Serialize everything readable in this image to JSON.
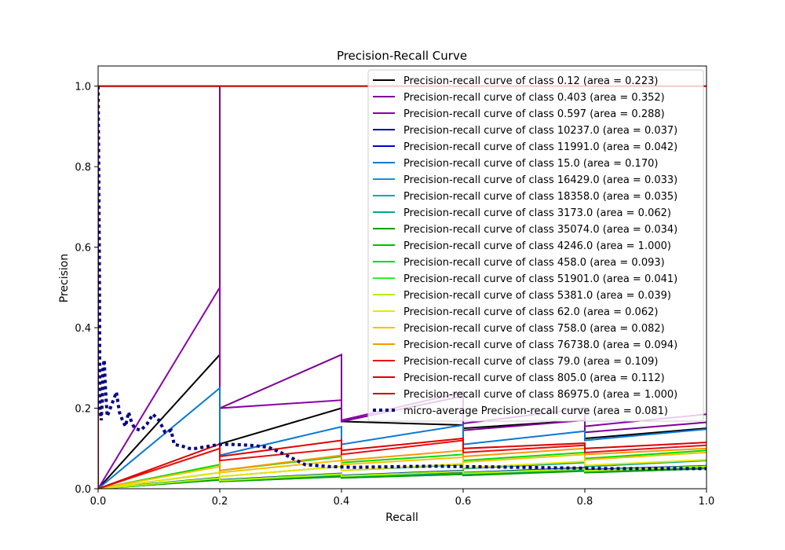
{
  "chart_data": {
    "type": "line",
    "title": "Precision-Recall Curve",
    "xlabel": "Recall",
    "ylabel": "Precision",
    "xlim": [
      0.0,
      1.0
    ],
    "ylim": [
      0.0,
      1.05
    ],
    "xticks": [
      "0.0",
      "0.2",
      "0.4",
      "0.6",
      "0.8",
      "1.0"
    ],
    "yticks": [
      "0.0",
      "0.2",
      "0.4",
      "0.6",
      "0.8",
      "1.0"
    ],
    "grid": false,
    "legend_position": "top-right",
    "series": [
      {
        "name": "Precision-recall curve of class 0.12 (area = 0.223)",
        "color": "#000000",
        "points": [
          [
            0,
            0
          ],
          [
            0.2,
            0.333
          ],
          [
            0.2,
            0.111
          ],
          [
            0.4,
            0.2
          ],
          [
            0.4,
            0.167
          ],
          [
            0.6,
            0.158
          ],
          [
            0.6,
            0.15
          ],
          [
            0.8,
            0.17
          ],
          [
            0.8,
            0.125
          ],
          [
            1.0,
            0.15
          ]
        ]
      },
      {
        "name": "Precision-recall curve of class 0.403 (area = 0.352)",
        "color": "#7a0094",
        "points": [
          [
            0,
            0
          ],
          [
            0,
            1.0
          ],
          [
            0.2,
            1.0
          ],
          [
            0.2,
            0.2
          ],
          [
            0.4,
            0.333
          ],
          [
            0.4,
            0.167
          ],
          [
            0.6,
            0.23
          ],
          [
            0.6,
            0.145
          ],
          [
            0.8,
            0.17
          ],
          [
            0.8,
            0.14
          ],
          [
            1.0,
            0.165
          ]
        ]
      },
      {
        "name": "Precision-recall curve of class 0.597 (area = 0.288)",
        "color": "#8b00a8",
        "points": [
          [
            0,
            0
          ],
          [
            0.2,
            0.5
          ],
          [
            0.2,
            0.2
          ],
          [
            0.4,
            0.22
          ],
          [
            0.4,
            0.17
          ],
          [
            0.6,
            0.24
          ],
          [
            0.6,
            0.162
          ],
          [
            0.8,
            0.2
          ],
          [
            0.8,
            0.155
          ],
          [
            1.0,
            0.185
          ]
        ]
      },
      {
        "name": "Precision-recall curve of class 10237.0 (area = 0.037)",
        "color": "#0000a0",
        "points": [
          [
            0,
            0
          ],
          [
            0.2,
            0.025
          ],
          [
            0.2,
            0.02
          ],
          [
            0.4,
            0.035
          ],
          [
            0.4,
            0.03
          ],
          [
            0.6,
            0.042
          ],
          [
            0.6,
            0.037
          ],
          [
            0.8,
            0.05
          ],
          [
            0.8,
            0.045
          ],
          [
            1.0,
            0.055
          ]
        ]
      },
      {
        "name": "Precision-recall curve of class 11991.0 (area = 0.042)",
        "color": "#0000d0",
        "points": [
          [
            0,
            0
          ],
          [
            0.2,
            0.028
          ],
          [
            0.2,
            0.022
          ],
          [
            0.4,
            0.038
          ],
          [
            0.4,
            0.033
          ],
          [
            0.6,
            0.045
          ],
          [
            0.6,
            0.04
          ],
          [
            0.8,
            0.052
          ],
          [
            0.8,
            0.047
          ],
          [
            1.0,
            0.057
          ]
        ]
      },
      {
        "name": "Precision-recall curve of class 15.0 (area = 0.170)",
        "color": "#0a78d6",
        "points": [
          [
            0,
            0
          ],
          [
            0.2,
            0.25
          ],
          [
            0.2,
            0.083
          ],
          [
            0.4,
            0.154
          ],
          [
            0.4,
            0.11
          ],
          [
            0.6,
            0.158
          ],
          [
            0.6,
            0.11
          ],
          [
            0.8,
            0.143
          ],
          [
            0.8,
            0.12
          ],
          [
            1.0,
            0.148
          ]
        ]
      },
      {
        "name": "Precision-recall curve of class 16429.0 (area = 0.033)",
        "color": "#0a96d8",
        "points": [
          [
            0,
            0
          ],
          [
            0.2,
            0.022
          ],
          [
            0.2,
            0.018
          ],
          [
            0.4,
            0.03
          ],
          [
            0.4,
            0.027
          ],
          [
            0.6,
            0.036
          ],
          [
            0.6,
            0.033
          ],
          [
            0.8,
            0.045
          ],
          [
            0.8,
            0.04
          ],
          [
            1.0,
            0.05
          ]
        ]
      },
      {
        "name": "Precision-recall curve of class 18358.0 (area = 0.035)",
        "color": "#0aa6b0",
        "points": [
          [
            0,
            0
          ],
          [
            0.2,
            0.024
          ],
          [
            0.2,
            0.019
          ],
          [
            0.4,
            0.032
          ],
          [
            0.4,
            0.029
          ],
          [
            0.6,
            0.038
          ],
          [
            0.6,
            0.035
          ],
          [
            0.8,
            0.046
          ],
          [
            0.8,
            0.042
          ],
          [
            1.0,
            0.052
          ]
        ]
      },
      {
        "name": "Precision-recall curve of class 3173.0 (area = 0.062)",
        "color": "#00a890",
        "points": [
          [
            0,
            0
          ],
          [
            0.2,
            0.04
          ],
          [
            0.2,
            0.03
          ],
          [
            0.4,
            0.055
          ],
          [
            0.4,
            0.045
          ],
          [
            0.6,
            0.06
          ],
          [
            0.6,
            0.05
          ],
          [
            0.8,
            0.065
          ],
          [
            0.8,
            0.055
          ],
          [
            1.0,
            0.07
          ]
        ]
      },
      {
        "name": "Precision-recall curve of class 35074.0 (area = 0.034)",
        "color": "#00a000",
        "points": [
          [
            0,
            0
          ],
          [
            0.2,
            0.022
          ],
          [
            0.2,
            0.018
          ],
          [
            0.4,
            0.03
          ],
          [
            0.4,
            0.027
          ],
          [
            0.6,
            0.036
          ],
          [
            0.6,
            0.033
          ],
          [
            0.8,
            0.044
          ],
          [
            0.8,
            0.04
          ],
          [
            1.0,
            0.05
          ]
        ]
      },
      {
        "name": "Precision-recall curve of class 4246.0 (area = 1.000)",
        "color": "#00c000",
        "points": [
          [
            0,
            0
          ],
          [
            0,
            1.0
          ],
          [
            1.0,
            1.0
          ]
        ]
      },
      {
        "name": "Precision-recall curve of class 458.0 (area = 0.093)",
        "color": "#00dc00",
        "points": [
          [
            0,
            0
          ],
          [
            0.2,
            0.06
          ],
          [
            0.2,
            0.045
          ],
          [
            0.4,
            0.08
          ],
          [
            0.4,
            0.065
          ],
          [
            0.6,
            0.085
          ],
          [
            0.6,
            0.07
          ],
          [
            0.8,
            0.09
          ],
          [
            0.8,
            0.075
          ],
          [
            1.0,
            0.095
          ]
        ]
      },
      {
        "name": "Precision-recall curve of class 51901.0 (area = 0.041)",
        "color": "#30f030",
        "points": [
          [
            0,
            0
          ],
          [
            0.2,
            0.027
          ],
          [
            0.2,
            0.021
          ],
          [
            0.4,
            0.037
          ],
          [
            0.4,
            0.032
          ],
          [
            0.6,
            0.044
          ],
          [
            0.6,
            0.039
          ],
          [
            0.8,
            0.05
          ],
          [
            0.8,
            0.045
          ],
          [
            1.0,
            0.056
          ]
        ]
      },
      {
        "name": "Precision-recall curve of class 5381.0 (area = 0.039)",
        "color": "#b0f000",
        "points": [
          [
            0,
            0
          ],
          [
            0.2,
            0.026
          ],
          [
            0.2,
            0.02
          ],
          [
            0.4,
            0.036
          ],
          [
            0.4,
            0.031
          ],
          [
            0.6,
            0.043
          ],
          [
            0.6,
            0.038
          ],
          [
            0.8,
            0.049
          ],
          [
            0.8,
            0.044
          ],
          [
            1.0,
            0.055
          ]
        ]
      },
      {
        "name": "Precision-recall curve of class 62.0 (area = 0.062)",
        "color": "#e8e800",
        "points": [
          [
            0,
            0
          ],
          [
            0.2,
            0.04
          ],
          [
            0.2,
            0.03
          ],
          [
            0.4,
            0.055
          ],
          [
            0.4,
            0.045
          ],
          [
            0.6,
            0.062
          ],
          [
            0.6,
            0.052
          ],
          [
            0.8,
            0.068
          ],
          [
            0.8,
            0.058
          ],
          [
            1.0,
            0.072
          ]
        ]
      },
      {
        "name": "Precision-recall curve of class 758.0 (area = 0.082)",
        "color": "#f8c000",
        "points": [
          [
            0,
            0
          ],
          [
            0.2,
            0.055
          ],
          [
            0.2,
            0.04
          ],
          [
            0.4,
            0.07
          ],
          [
            0.4,
            0.06
          ],
          [
            0.6,
            0.078
          ],
          [
            0.6,
            0.066
          ],
          [
            0.8,
            0.085
          ],
          [
            0.8,
            0.072
          ],
          [
            1.0,
            0.09
          ]
        ]
      },
      {
        "name": "Precision-recall curve of class 76738.0 (area = 0.094)",
        "color": "#f89800",
        "points": [
          [
            0,
            0
          ],
          [
            0.2,
            0.1
          ],
          [
            0.2,
            0.045
          ],
          [
            0.4,
            0.083
          ],
          [
            0.4,
            0.07
          ],
          [
            0.6,
            0.095
          ],
          [
            0.6,
            0.08
          ],
          [
            0.8,
            0.1
          ],
          [
            0.8,
            0.085
          ],
          [
            1.0,
            0.1
          ]
        ]
      },
      {
        "name": "Precision-recall curve of class 79.0 (area = 0.109)",
        "color": "#e81010",
        "points": [
          [
            0,
            0
          ],
          [
            0.2,
            0.1
          ],
          [
            0.2,
            0.07
          ],
          [
            0.4,
            0.1
          ],
          [
            0.4,
            0.085
          ],
          [
            0.6,
            0.12
          ],
          [
            0.6,
            0.09
          ],
          [
            0.8,
            0.108
          ],
          [
            0.8,
            0.09
          ],
          [
            1.0,
            0.108
          ]
        ]
      },
      {
        "name": "Precision-recall curve of class 805.0 (area = 0.112)",
        "color": "#e00000",
        "points": [
          [
            0,
            0
          ],
          [
            0.2,
            0.111
          ],
          [
            0.2,
            0.08
          ],
          [
            0.4,
            0.12
          ],
          [
            0.4,
            0.095
          ],
          [
            0.6,
            0.125
          ],
          [
            0.6,
            0.1
          ],
          [
            0.8,
            0.113
          ],
          [
            0.8,
            0.1
          ],
          [
            1.0,
            0.115
          ]
        ]
      },
      {
        "name": "Precision-recall curve of class 86975.0 (area = 1.000)",
        "color": "#c80000",
        "points": [
          [
            0,
            0
          ],
          [
            0,
            1.0
          ],
          [
            1.0,
            1.0
          ]
        ]
      },
      {
        "name": "micro-average Precision-recall curve (area = 0.081)",
        "color": "#000080",
        "dotted": true,
        "points": [
          [
            0,
            1.0
          ],
          [
            0.002,
            0.6
          ],
          [
            0.003,
            0.2
          ],
          [
            0.005,
            0.17
          ],
          [
            0.007,
            0.22
          ],
          [
            0.008,
            0.3
          ],
          [
            0.01,
            0.32
          ],
          [
            0.012,
            0.25
          ],
          [
            0.015,
            0.18
          ],
          [
            0.02,
            0.2
          ],
          [
            0.025,
            0.22
          ],
          [
            0.03,
            0.24
          ],
          [
            0.035,
            0.19
          ],
          [
            0.04,
            0.17
          ],
          [
            0.045,
            0.155
          ],
          [
            0.05,
            0.19
          ],
          [
            0.055,
            0.165
          ],
          [
            0.06,
            0.15
          ],
          [
            0.07,
            0.145
          ],
          [
            0.08,
            0.16
          ],
          [
            0.09,
            0.185
          ],
          [
            0.1,
            0.17
          ],
          [
            0.11,
            0.14
          ],
          [
            0.12,
            0.145
          ],
          [
            0.125,
            0.11
          ],
          [
            0.14,
            0.105
          ],
          [
            0.15,
            0.1
          ],
          [
            0.16,
            0.1
          ],
          [
            0.18,
            0.105
          ],
          [
            0.2,
            0.11
          ],
          [
            0.22,
            0.11
          ],
          [
            0.25,
            0.108
          ],
          [
            0.28,
            0.103
          ],
          [
            0.3,
            0.09
          ],
          [
            0.32,
            0.075
          ],
          [
            0.34,
            0.06
          ],
          [
            0.38,
            0.055
          ],
          [
            0.42,
            0.053
          ],
          [
            0.5,
            0.055
          ],
          [
            0.55,
            0.056
          ],
          [
            0.6,
            0.055
          ],
          [
            0.65,
            0.054
          ],
          [
            0.7,
            0.053
          ],
          [
            0.75,
            0.052
          ],
          [
            0.8,
            0.051
          ],
          [
            0.85,
            0.05
          ],
          [
            0.9,
            0.05
          ],
          [
            0.95,
            0.05
          ],
          [
            1.0,
            0.05
          ]
        ]
      }
    ]
  }
}
